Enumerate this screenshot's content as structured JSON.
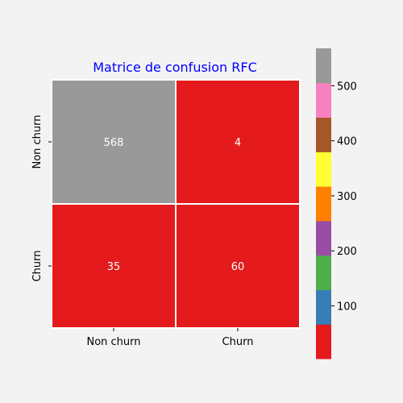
{
  "chart_data": {
    "type": "heatmap",
    "title": "Matrice de confusion RFC",
    "title_color": "#0000ff",
    "row_labels": [
      "Non churn",
      "Churn"
    ],
    "col_labels": [
      "Non churn",
      "Churn"
    ],
    "values": [
      [
        568,
        4
      ],
      [
        35,
        60
      ]
    ],
    "annotations": [
      "568",
      "4",
      "35",
      "60"
    ],
    "colormap": "Set1",
    "colorbar": {
      "vmin": 4,
      "vmax": 568,
      "ticks": [
        100,
        200,
        300,
        400,
        500
      ],
      "tick_labels": [
        "100",
        "200",
        "300",
        "400",
        "500"
      ],
      "colors": [
        "#e41a1c",
        "#377eb8",
        "#4daf4a",
        "#984ea3",
        "#ff7f00",
        "#ffff33",
        "#a65628",
        "#f781bf",
        "#999999"
      ]
    },
    "grid": false,
    "legend": "colorbar-right"
  }
}
